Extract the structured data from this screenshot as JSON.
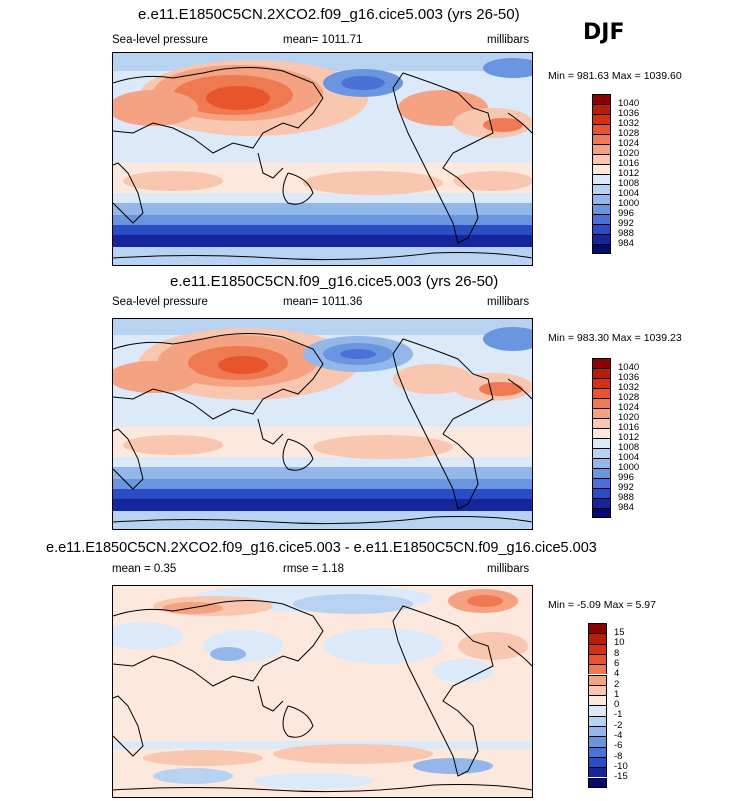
{
  "season": "DJF",
  "panels": [
    {
      "title": "e.e11.E1850C5CN.2XCO2.f09_g16.cice5.003 (yrs 26-50)",
      "left": "Sea-level pressure",
      "center": "mean= 1011.71",
      "right": "millibars",
      "minmax": "Min = 981.63 Max = 1039.60"
    },
    {
      "title": "e.e11.E1850C5CN.f09_g16.cice5.003 (yrs 26-50)",
      "left": "Sea-level pressure",
      "center": "mean= 1011.36",
      "right": "millibars",
      "minmax": "Min = 983.30 Max = 1039.23"
    },
    {
      "title": "e.e11.E1850C5CN.2XCO2.f09_g16.cice5.003 - e.e11.E1850C5CN.f09_g16.cice5.003",
      "left": "mean =   0.35",
      "center": "rmse =   1.18",
      "right": "millibars",
      "minmax": "Min =  -5.09 Max =   5.97"
    }
  ],
  "colorbars": {
    "slp": {
      "labels": [
        "1040",
        "1036",
        "1032",
        "1028",
        "1024",
        "1020",
        "1016",
        "1012",
        "1008",
        "1004",
        "1000",
        "996",
        "992",
        "988",
        "984"
      ],
      "colors": [
        "#8b0000",
        "#b81d07",
        "#d8300e",
        "#e8542b",
        "#ef7a52",
        "#f5a283",
        "#f9c6b0",
        "#fde8dd",
        "#dce9f8",
        "#b8d2f2",
        "#93b7ea",
        "#6a96e0",
        "#4a72d6",
        "#2a4cc4",
        "#14269a",
        "#050b70"
      ]
    },
    "diff": {
      "labels": [
        "15",
        "10",
        "8",
        "6",
        "4",
        "2",
        "1",
        "0",
        "-1",
        "-2",
        "-4",
        "-6",
        "-8",
        "-10",
        "-15"
      ],
      "colors": [
        "#8b0000",
        "#b81d07",
        "#d8300e",
        "#e8542b",
        "#ef7a52",
        "#f5a283",
        "#f9c6b0",
        "#fde8dd",
        "#dce9f8",
        "#b8d2f2",
        "#93b7ea",
        "#6a96e0",
        "#4a72d6",
        "#2a4cc4",
        "#14269a",
        "#050b70"
      ]
    }
  }
}
